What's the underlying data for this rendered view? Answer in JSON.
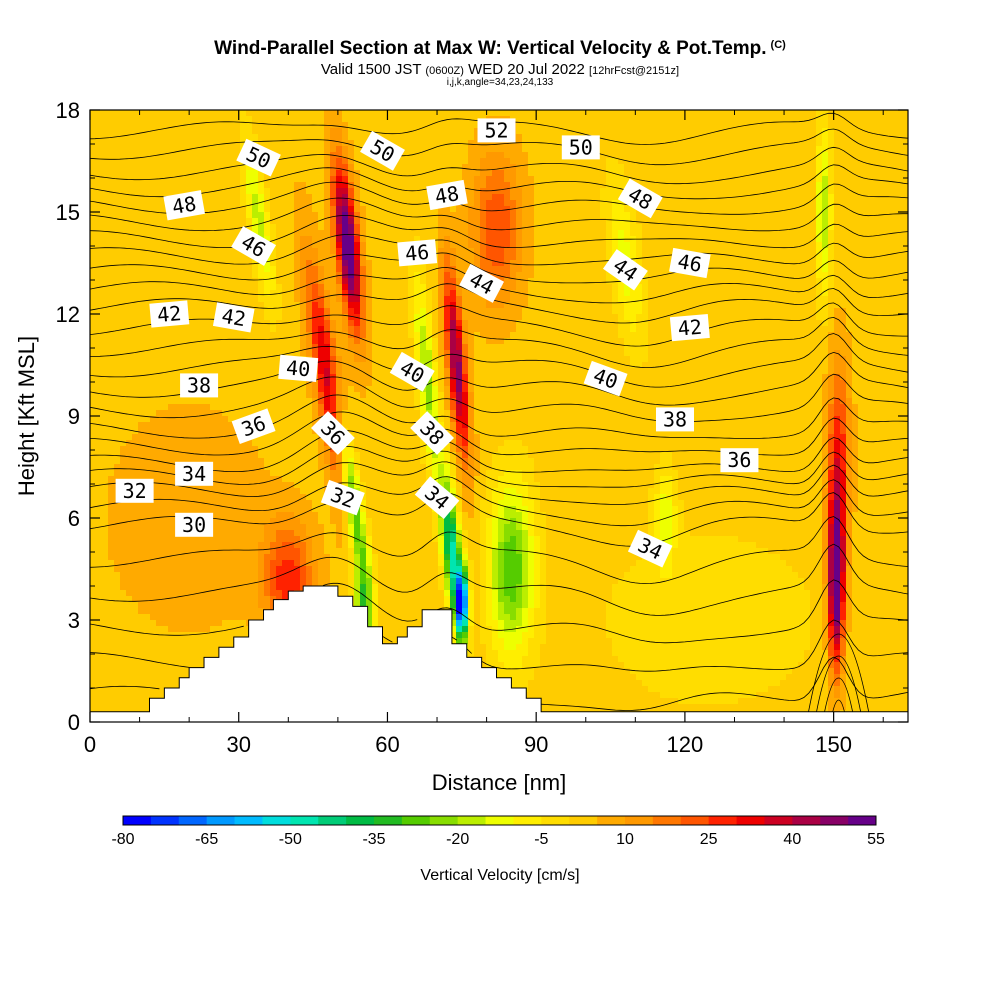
{
  "chart_data": {
    "type": "heatmap",
    "title": "Wind-Parallel Section at Max W: Vertical Velocity & Pot.Temp.",
    "title_units": "(C)",
    "subtitle_main": "Valid 1500 JST",
    "subtitle_utc": "(0600Z)",
    "subtitle_date": "WED 20 Jul 2022",
    "subtitle_fcst": "[12hrFcst@2151z]",
    "index_line": "i,j,k,angle=34,23,24,133",
    "xlabel": "Distance [nm]",
    "ylabel": "Height [Kft MSL]",
    "xlim": [
      0,
      165
    ],
    "ylim": [
      0,
      18
    ],
    "x_ticks": [
      0,
      30,
      60,
      90,
      120,
      150
    ],
    "x_tick_labels": [
      "0",
      "30",
      "60",
      "90",
      "120",
      "150"
    ],
    "y_ticks": [
      0,
      3,
      6,
      9,
      12,
      15,
      18
    ],
    "y_tick_labels": [
      "0",
      "3",
      "6",
      "9",
      "12",
      "15",
      "18"
    ],
    "colorbar": {
      "label": "Vertical Velocity [cm/s]",
      "min": -80,
      "max": 55,
      "step": 5,
      "tick_labels": [
        "-80",
        "-65",
        "-50",
        "-35",
        "-20",
        "-5",
        "10",
        "25",
        "40",
        "55"
      ],
      "colors": [
        "#0000ff",
        "#0033ff",
        "#0066ff",
        "#0099ff",
        "#00bbff",
        "#00dddd",
        "#00e5b0",
        "#00cc77",
        "#00bb44",
        "#22bb22",
        "#55cc00",
        "#88dd00",
        "#bbee00",
        "#eeff00",
        "#ffee00",
        "#ffdd00",
        "#ffcc00",
        "#ffaa00",
        "#ff9900",
        "#ff7700",
        "#ff5500",
        "#ff2200",
        "#ee0000",
        "#cc0022",
        "#aa0044",
        "#880066",
        "#660088"
      ]
    },
    "background_w": 3,
    "w_features": [
      {
        "x": 52,
        "y": 14,
        "sx": 2.2,
        "sy": 2.4,
        "w": 56,
        "tilt": -0.18
      },
      {
        "x": 48,
        "y": 10,
        "sx": 2.5,
        "sy": 3.5,
        "w": 35,
        "tilt": -0.25
      },
      {
        "x": 40,
        "y": 4.2,
        "sx": 5,
        "sy": 1.6,
        "w": 25
      },
      {
        "x": 74,
        "y": 10.5,
        "sx": 1.8,
        "sy": 2.8,
        "w": 45,
        "tilt": -0.15
      },
      {
        "x": 82,
        "y": 14.5,
        "sx": 5,
        "sy": 2.2,
        "w": 22
      },
      {
        "x": 150.5,
        "y": 4,
        "sx": 1.6,
        "sy": 2.4,
        "w": 55
      },
      {
        "x": 151,
        "y": 7.5,
        "sx": 2.2,
        "sy": 3,
        "w": 28
      },
      {
        "x": 34,
        "y": 14.8,
        "sx": 2,
        "sy": 2.4,
        "w": -20,
        "tilt": -0.25
      },
      {
        "x": 53,
        "y": 6.5,
        "sx": 1.8,
        "sy": 2.6,
        "w": -38,
        "tilt": -0.25
      },
      {
        "x": 55,
        "y": 3,
        "sx": 2,
        "sy": 1.6,
        "w": -30
      },
      {
        "x": 68,
        "y": 10,
        "sx": 1.8,
        "sy": 3,
        "w": -25,
        "tilt": -0.15
      },
      {
        "x": 73,
        "y": 5,
        "sx": 1.8,
        "sy": 2.2,
        "w": -50,
        "tilt": -0.15
      },
      {
        "x": 75,
        "y": 3.5,
        "sx": 1.2,
        "sy": 1,
        "w": -70
      },
      {
        "x": 85,
        "y": 4.5,
        "sx": 4.5,
        "sy": 2.5,
        "w": -32
      },
      {
        "x": 108,
        "y": 13.5,
        "sx": 3,
        "sy": 2.5,
        "w": -15,
        "tilt": -0.2
      },
      {
        "x": 116,
        "y": 6,
        "sx": 2.2,
        "sy": 1.5,
        "w": -15
      },
      {
        "x": 148,
        "y": 15,
        "sx": 1.5,
        "sy": 2.5,
        "w": -22
      },
      {
        "x": 20,
        "y": 6,
        "sx": 15,
        "sy": 3,
        "w": 7
      },
      {
        "x": 125,
        "y": 3,
        "sx": 25,
        "sy": 3,
        "w": -6
      }
    ],
    "terrain": {
      "x": [
        0,
        12,
        12,
        15,
        15,
        18,
        18,
        20,
        20,
        23,
        23,
        26,
        26,
        29,
        29,
        32,
        32,
        35,
        35,
        37,
        37,
        40,
        40,
        43,
        43,
        46,
        46,
        50,
        50,
        53,
        53,
        56,
        56,
        59,
        59,
        62,
        62,
        64,
        64,
        67,
        67,
        70,
        70,
        73,
        73,
        76,
        76,
        79,
        79,
        82,
        82,
        85,
        85,
        88,
        88,
        91,
        91,
        165
      ],
      "y": [
        0.3,
        0.3,
        0.7,
        0.7,
        1.0,
        1.0,
        1.3,
        1.3,
        1.6,
        1.6,
        1.9,
        1.9,
        2.2,
        2.2,
        2.5,
        2.5,
        3.0,
        3.0,
        3.3,
        3.3,
        3.6,
        3.6,
        3.85,
        3.85,
        4.0,
        4.0,
        4.0,
        4.0,
        3.7,
        3.7,
        3.4,
        3.4,
        2.8,
        2.8,
        2.3,
        2.3,
        2.5,
        2.5,
        2.8,
        2.8,
        3.3,
        3.3,
        3.3,
        3.3,
        2.3,
        2.3,
        1.9,
        1.9,
        1.6,
        1.6,
        1.3,
        1.3,
        1.0,
        1.0,
        0.7,
        0.7,
        0.3,
        0.3
      ]
    },
    "isentropes": {
      "levels": [
        30,
        32,
        34,
        36,
        38,
        40,
        42,
        44,
        46,
        48,
        50,
        52
      ],
      "baseline_heights_kft": [
        5.8,
        6.8,
        7.6,
        8.6,
        9.8,
        11.0,
        12.2,
        13.2,
        14.2,
        15.2,
        16.2,
        17.4
      ],
      "intermediate_lines_per_interval": 1
    },
    "contour_labels": [
      {
        "text": "52",
        "x": 82,
        "y": 17.4,
        "angle": 0
      },
      {
        "text": "50",
        "x": 34,
        "y": 16.6,
        "angle": 25
      },
      {
        "text": "50",
        "x": 59,
        "y": 16.8,
        "angle": 30
      },
      {
        "text": "50",
        "x": 99,
        "y": 16.9,
        "angle": 0
      },
      {
        "text": "48",
        "x": 19,
        "y": 15.2,
        "angle": -10
      },
      {
        "text": "48",
        "x": 72,
        "y": 15.5,
        "angle": -10
      },
      {
        "text": "48",
        "x": 111,
        "y": 15.4,
        "angle": 30
      },
      {
        "text": "46",
        "x": 33,
        "y": 14.0,
        "angle": 30
      },
      {
        "text": "46",
        "x": 66,
        "y": 13.8,
        "angle": -5
      },
      {
        "text": "46",
        "x": 121,
        "y": 13.5,
        "angle": 10
      },
      {
        "text": "44",
        "x": 79,
        "y": 12.9,
        "angle": 28
      },
      {
        "text": "44",
        "x": 108,
        "y": 13.3,
        "angle": 35
      },
      {
        "text": "42",
        "x": 16,
        "y": 12.0,
        "angle": -5
      },
      {
        "text": "42",
        "x": 29,
        "y": 11.9,
        "angle": 10
      },
      {
        "text": "42",
        "x": 121,
        "y": 11.6,
        "angle": -5
      },
      {
        "text": "40",
        "x": 42,
        "y": 10.4,
        "angle": 5
      },
      {
        "text": "40",
        "x": 65,
        "y": 10.3,
        "angle": 30
      },
      {
        "text": "40",
        "x": 104,
        "y": 10.1,
        "angle": 20
      },
      {
        "text": "38",
        "x": 22,
        "y": 9.9,
        "angle": 0
      },
      {
        "text": "38",
        "x": 69,
        "y": 8.5,
        "angle": 45
      },
      {
        "text": "38",
        "x": 118,
        "y": 8.9,
        "angle": 0
      },
      {
        "text": "36",
        "x": 33,
        "y": 8.7,
        "angle": -20
      },
      {
        "text": "36",
        "x": 49,
        "y": 8.5,
        "angle": 45
      },
      {
        "text": "36",
        "x": 131,
        "y": 7.7,
        "angle": 0
      },
      {
        "text": "34",
        "x": 21,
        "y": 7.3,
        "angle": 0
      },
      {
        "text": "34",
        "x": 70,
        "y": 6.6,
        "angle": 40
      },
      {
        "text": "34",
        "x": 113,
        "y": 5.1,
        "angle": 25
      },
      {
        "text": "32",
        "x": 9,
        "y": 6.8,
        "angle": 0
      },
      {
        "text": "32",
        "x": 51,
        "y": 6.6,
        "angle": 20
      },
      {
        "text": "30",
        "x": 21,
        "y": 5.8,
        "angle": 0
      }
    ]
  }
}
